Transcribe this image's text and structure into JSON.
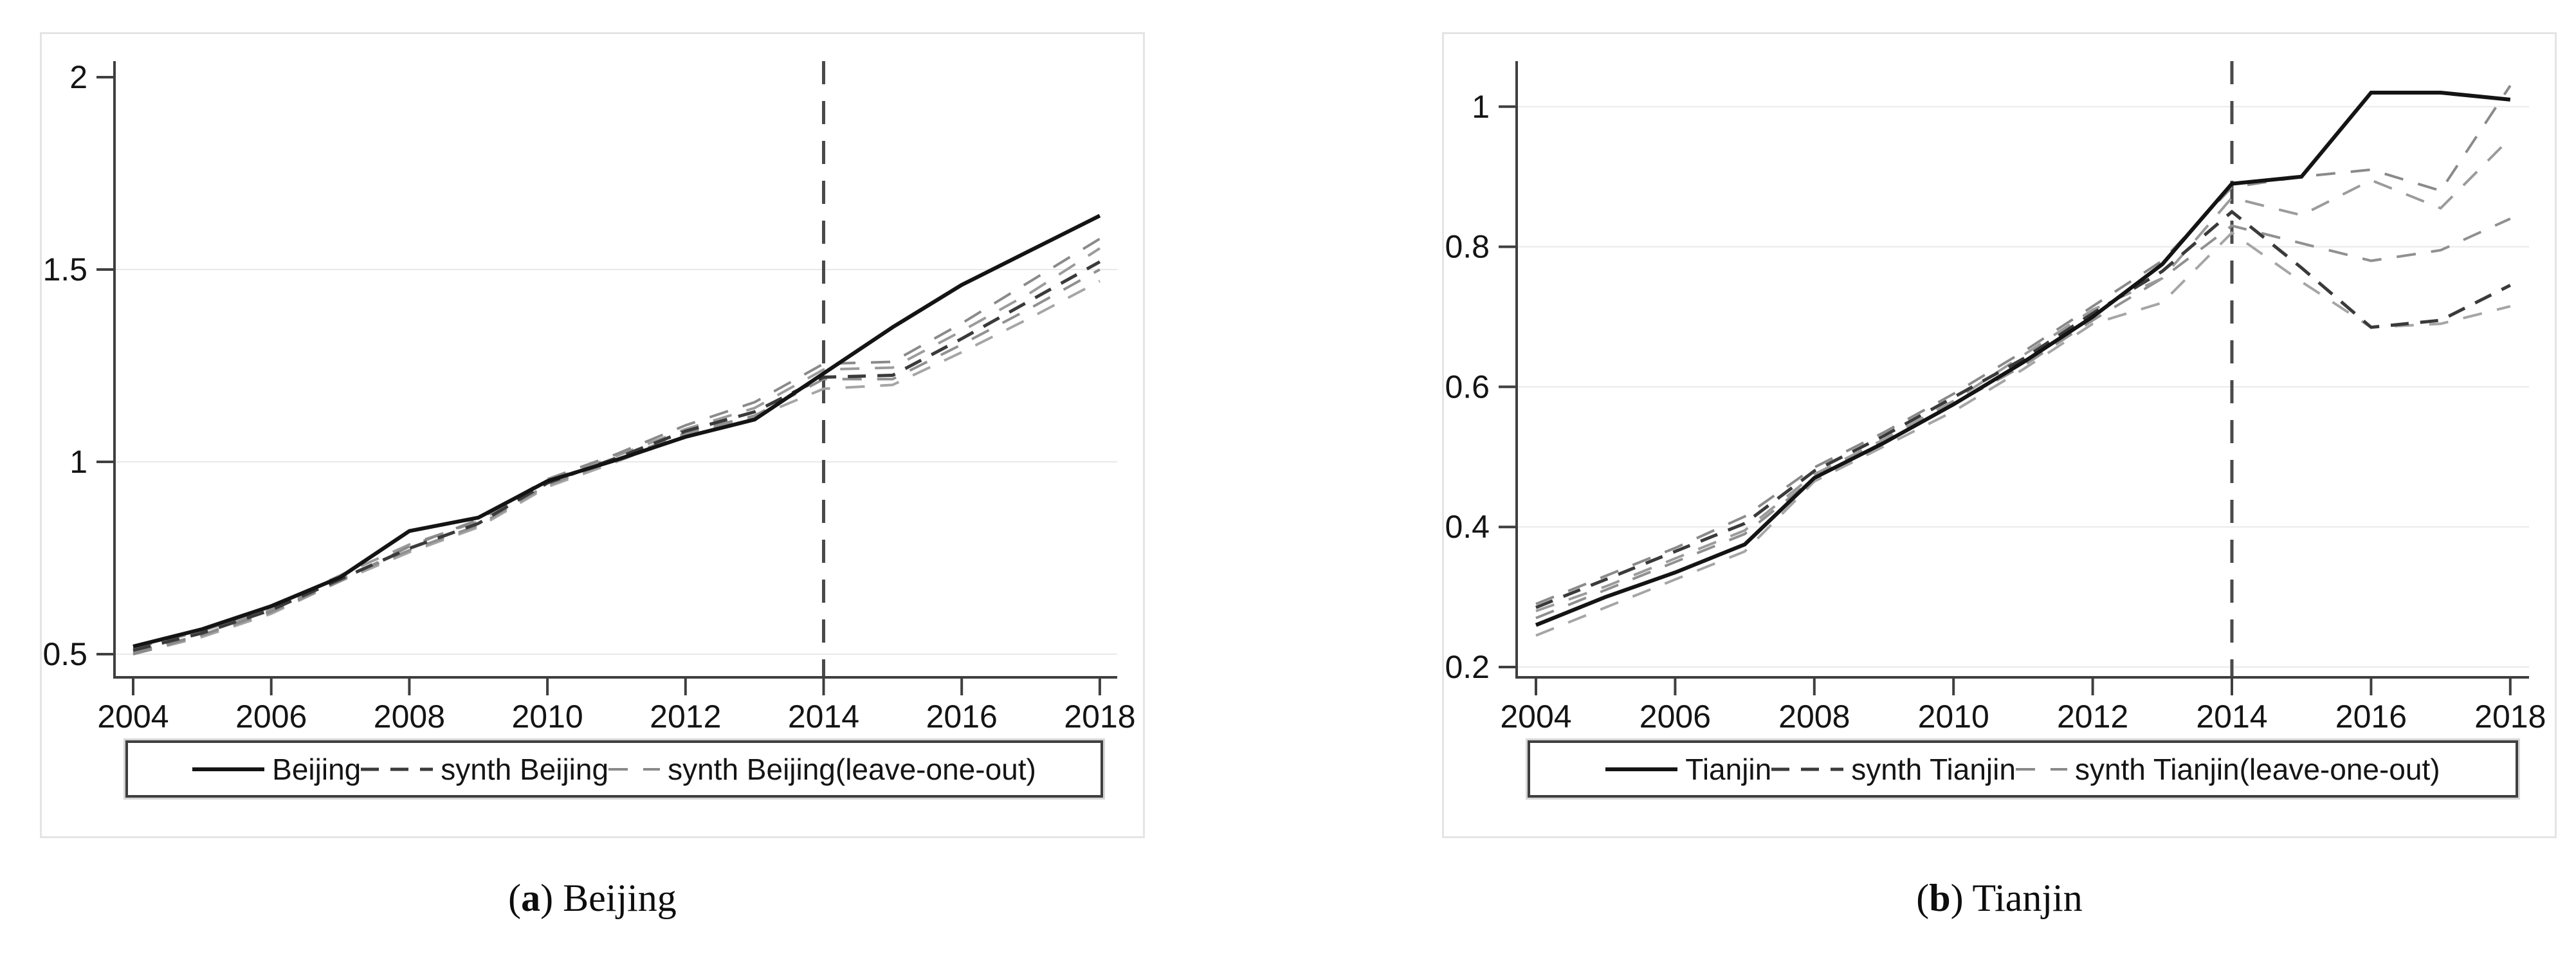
{
  "figure": {
    "background": "#ffffff",
    "panel_border_color": "#e4e4e4",
    "captions": [
      {
        "open": "(",
        "letter": "a",
        "close": ") ",
        "label": "Beijing"
      },
      {
        "open": "(",
        "letter": "b",
        "close": ") ",
        "label": "Tianjin"
      }
    ]
  },
  "colors": {
    "axis": "#3f3f3f",
    "grid": "#e9e9e9",
    "tick_label": "#141414",
    "reference_line": "#4a4a4a",
    "legend_border": "#3f3f3f",
    "solid_series": "#141414",
    "synth_series": "#3a3a3a",
    "leave_one_out_series": "#8f8f8f"
  },
  "chart_data": [
    {
      "type": "line",
      "panel": "a",
      "title": "",
      "xlabel": "",
      "ylabel": "",
      "grid": "horizontal",
      "legend_position": "bottom",
      "x": [
        2004,
        2005,
        2006,
        2007,
        2008,
        2009,
        2010,
        2011,
        2012,
        2013,
        2014,
        2015,
        2016,
        2017,
        2018
      ],
      "xlim": [
        2003.7,
        2018.3
      ],
      "ylim": [
        0.44,
        2.04
      ],
      "xticks": [
        {
          "value": 2004,
          "label": "2004"
        },
        {
          "value": 2006,
          "label": "2006"
        },
        {
          "value": 2008,
          "label": "2008"
        },
        {
          "value": 2010,
          "label": "2010"
        },
        {
          "value": 2012,
          "label": "2012"
        },
        {
          "value": 2014,
          "label": "2014"
        },
        {
          "value": 2016,
          "label": "2016"
        },
        {
          "value": 2018,
          "label": "2018"
        }
      ],
      "yticks": [
        {
          "value": 0.5,
          "label": "0.5",
          "grid": true
        },
        {
          "value": 1,
          "label": "1",
          "grid": true
        },
        {
          "value": 1.5,
          "label": "1.5",
          "grid": true
        },
        {
          "value": 2,
          "label": "2",
          "grid": false
        }
      ],
      "reference_line": {
        "x": 2014,
        "style": "dashed"
      },
      "series": [
        {
          "name": "Beijing",
          "style": "solid",
          "color": "#141414",
          "width": 6,
          "dash": "",
          "in_legend": true,
          "sample_width": 112,
          "values": [
            0.52,
            0.565,
            0.625,
            0.7,
            0.82,
            0.855,
            0.95,
            1.005,
            1.065,
            1.11,
            1.23,
            1.35,
            1.46,
            1.55,
            1.64
          ]
        },
        {
          "name": "synth Beijing",
          "style": "dashed",
          "color": "#3a3a3a",
          "width": 5,
          "dash": "28 18",
          "in_legend": true,
          "sample_width": 112,
          "values": [
            0.51,
            0.555,
            0.615,
            0.695,
            0.775,
            0.84,
            0.945,
            1.01,
            1.08,
            1.13,
            1.22,
            1.225,
            1.32,
            1.42,
            1.52
          ]
        },
        {
          "name": "synth Beijing(leave-one-out)",
          "style": "dashed",
          "color": "#8a8a8a",
          "width": 4,
          "dash": "30 24",
          "in_legend": true,
          "sample_width": 80,
          "values": [
            0.5,
            0.55,
            0.61,
            0.69,
            0.78,
            0.85,
            0.955,
            1.02,
            1.095,
            1.155,
            1.255,
            1.26,
            1.36,
            1.47,
            1.58
          ]
        },
        {
          "name": "synth Beijing(leave-one-out)",
          "style": "dashed",
          "color": "#9b9b9b",
          "width": 4,
          "dash": "30 24",
          "in_legend": false,
          "sample_width": 80,
          "values": [
            0.515,
            0.56,
            0.62,
            0.705,
            0.785,
            0.845,
            0.95,
            1.015,
            1.085,
            1.14,
            1.24,
            1.245,
            1.34,
            1.44,
            1.555
          ]
        },
        {
          "name": "synth Beijing(leave-one-out)",
          "style": "dashed",
          "color": "#909090",
          "width": 4,
          "dash": "30 24",
          "in_legend": false,
          "sample_width": 80,
          "values": [
            0.505,
            0.55,
            0.615,
            0.695,
            0.77,
            0.835,
            0.94,
            1.005,
            1.075,
            1.12,
            1.215,
            1.215,
            1.305,
            1.4,
            1.5
          ]
        },
        {
          "name": "synth Beijing(leave-one-out)",
          "style": "dashed",
          "color": "#a5a5a5",
          "width": 4,
          "dash": "30 24",
          "in_legend": false,
          "sample_width": 80,
          "values": [
            0.5,
            0.545,
            0.605,
            0.69,
            0.765,
            0.83,
            0.935,
            1.0,
            1.07,
            1.115,
            1.19,
            1.2,
            1.285,
            1.375,
            1.47
          ]
        }
      ]
    },
    {
      "type": "line",
      "panel": "b",
      "title": "",
      "xlabel": "",
      "ylabel": "",
      "grid": "horizontal",
      "legend_position": "bottom",
      "x": [
        2004,
        2005,
        2006,
        2007,
        2008,
        2009,
        2010,
        2011,
        2012,
        2013,
        2014,
        2015,
        2016,
        2017,
        2018
      ],
      "xlim": [
        2003.7,
        2018.3
      ],
      "ylim": [
        0.195,
        1.065
      ],
      "xticks": [
        {
          "value": 2004,
          "label": "2004"
        },
        {
          "value": 2006,
          "label": "2006"
        },
        {
          "value": 2008,
          "label": "2008"
        },
        {
          "value": 2010,
          "label": "2010"
        },
        {
          "value": 2012,
          "label": "2012"
        },
        {
          "value": 2014,
          "label": "2014"
        },
        {
          "value": 2016,
          "label": "2016"
        },
        {
          "value": 2018,
          "label": "2018"
        }
      ],
      "yticks": [
        {
          "value": 0.2,
          "label": "0.2",
          "grid": true
        },
        {
          "value": 0.4,
          "label": "0.4",
          "grid": true
        },
        {
          "value": 0.6,
          "label": "0.6",
          "grid": true
        },
        {
          "value": 0.8,
          "label": "0.8",
          "grid": true
        },
        {
          "value": 1,
          "label": "1",
          "grid": true
        }
      ],
      "reference_line": {
        "x": 2014,
        "style": "dashed"
      },
      "series": [
        {
          "name": "Tianjin",
          "style": "solid",
          "color": "#141414",
          "width": 6,
          "dash": "",
          "in_legend": true,
          "sample_width": 112,
          "values": [
            0.26,
            0.3,
            0.335,
            0.375,
            0.47,
            0.52,
            0.575,
            0.635,
            0.7,
            0.775,
            0.89,
            0.9,
            1.02,
            1.02,
            1.01
          ]
        },
        {
          "name": "synth Tianjin",
          "style": "dashed",
          "color": "#3a3a3a",
          "width": 5,
          "dash": "28 18",
          "in_legend": true,
          "sample_width": 112,
          "values": [
            0.285,
            0.325,
            0.365,
            0.405,
            0.48,
            0.53,
            0.585,
            0.64,
            0.705,
            0.765,
            0.85,
            0.77,
            0.685,
            0.695,
            0.745
          ]
        },
        {
          "name": "synth Tianjin(leave-one-out)",
          "style": "dashed",
          "color": "#8a8a8a",
          "width": 4,
          "dash": "30 24",
          "in_legend": true,
          "sample_width": 80,
          "values": [
            0.29,
            0.33,
            0.37,
            0.415,
            0.485,
            0.535,
            0.59,
            0.65,
            0.715,
            0.78,
            0.885,
            0.9,
            0.91,
            0.88,
            1.03
          ]
        },
        {
          "name": "synth Tianjin(leave-one-out)",
          "style": "dashed",
          "color": "#9b9b9b",
          "width": 4,
          "dash": "30 24",
          "in_legend": false,
          "sample_width": 80,
          "values": [
            0.28,
            0.315,
            0.355,
            0.395,
            0.475,
            0.525,
            0.58,
            0.645,
            0.71,
            0.755,
            0.87,
            0.845,
            0.895,
            0.855,
            0.955
          ]
        },
        {
          "name": "synth Tianjin(leave-one-out)",
          "style": "dashed",
          "color": "#909090",
          "width": 4,
          "dash": "30 24",
          "in_legend": false,
          "sample_width": 80,
          "values": [
            0.27,
            0.31,
            0.35,
            0.39,
            0.47,
            0.52,
            0.575,
            0.63,
            0.695,
            0.755,
            0.83,
            0.805,
            0.78,
            0.795,
            0.84
          ]
        },
        {
          "name": "synth Tianjin(leave-one-out)",
          "style": "dashed",
          "color": "#a5a5a5",
          "width": 4,
          "dash": "30 24",
          "in_legend": false,
          "sample_width": 80,
          "values": [
            0.245,
            0.285,
            0.325,
            0.365,
            0.465,
            0.515,
            0.565,
            0.625,
            0.69,
            0.72,
            0.82,
            0.75,
            0.685,
            0.69,
            0.715
          ]
        }
      ]
    }
  ]
}
